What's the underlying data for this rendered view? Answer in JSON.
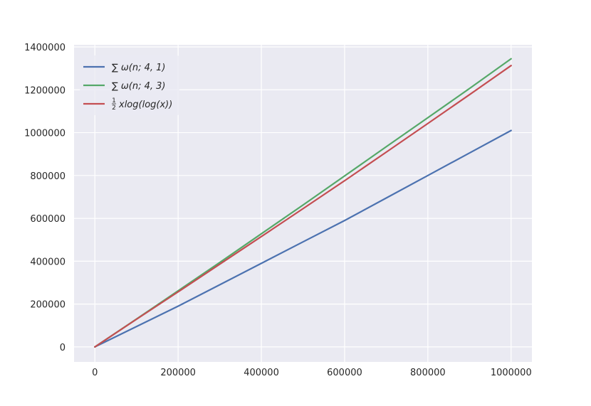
{
  "chart_data": {
    "type": "line",
    "title": "",
    "xlabel": "",
    "ylabel": "",
    "xlim": [
      -50000,
      1050000
    ],
    "ylim": [
      -70000,
      1410000
    ],
    "grid": true,
    "legend_position": "top-left",
    "x_ticks": [
      "0",
      "200000",
      "400000",
      "600000",
      "800000",
      "1000000"
    ],
    "y_ticks": [
      "0",
      "200000",
      "400000",
      "600000",
      "800000",
      "1000000",
      "1200000",
      "1400000"
    ],
    "series": [
      {
        "name": "∑ ω(n; 4, 1)",
        "color": "#4c72b0",
        "x": [
          0,
          100000,
          200000,
          300000,
          400000,
          500000,
          600000,
          700000,
          800000,
          900000,
          1000000
        ],
        "y": [
          0,
          95000,
          190000,
          290000,
          390000,
          490000,
          590000,
          695000,
          800000,
          905000,
          1010000
        ]
      },
      {
        "name": "∑ ω(n; 4, 3)",
        "color": "#55a868",
        "x": [
          0,
          100000,
          200000,
          300000,
          400000,
          500000,
          600000,
          700000,
          800000,
          900000,
          1000000
        ],
        "y": [
          0,
          130000,
          262000,
          394000,
          528000,
          662000,
          798000,
          934000,
          1070000,
          1206000,
          1345000
        ]
      },
      {
        "name": "xlog(log(x))",
        "name_prefix_fraction": {
          "numerator": "1",
          "denominator": "2"
        },
        "color": "#c44e52",
        "x": [
          0,
          100000,
          200000,
          300000,
          400000,
          500000,
          600000,
          700000,
          800000,
          900000,
          1000000
        ],
        "y": [
          0,
          129000,
          257000,
          386000,
          515000,
          645000,
          776000,
          909000,
          1043000,
          1177000,
          1313000
        ]
      }
    ]
  }
}
